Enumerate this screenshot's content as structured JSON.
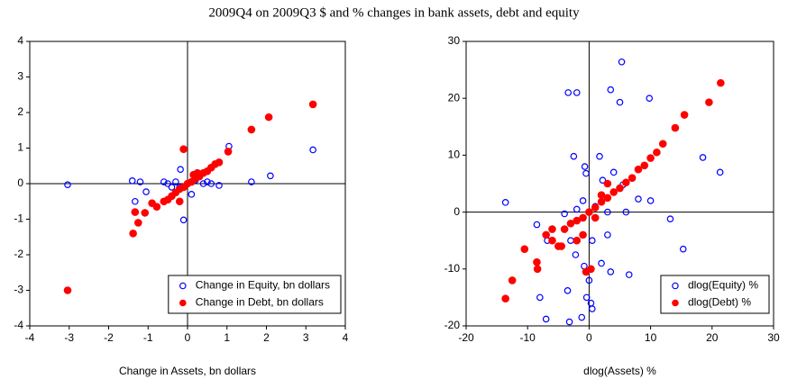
{
  "title": "2009Q4 on 2009Q3 $ and % changes in bank assets, debt and equity",
  "chart_data": [
    {
      "type": "scatter",
      "x_label": "Change in Assets, bn dollars",
      "xlim": [
        -4,
        4
      ],
      "ylim": [
        -4,
        4
      ],
      "xticks": [
        -4,
        -3,
        -2,
        -1,
        0,
        1,
        2,
        3,
        4
      ],
      "yticks": [
        -4,
        -3,
        -2,
        -1,
        0,
        1,
        2,
        3,
        4
      ],
      "zero_lines": true,
      "legend": "lower right",
      "series": [
        {
          "name": "Change in Equity, bn dollars",
          "color": "#0000ff",
          "marker": "open",
          "x": [
            -3.04,
            -1.4,
            -1.2,
            -1.05,
            -1.33,
            -0.1,
            1.05,
            2.1,
            3.18,
            1.62,
            -0.18,
            -0.5,
            -0.3,
            -0.2,
            0.2,
            0.4,
            0.6,
            0.8,
            0.5,
            -0.4,
            0.1,
            0.3,
            -0.6
          ],
          "values": [
            -0.03,
            0.08,
            0.05,
            -0.23,
            -0.5,
            -1.02,
            1.05,
            0.22,
            0.95,
            0.05,
            0.4,
            0,
            0.05,
            -0.1,
            0.1,
            0,
            0,
            -0.05,
            0.05,
            -0.1,
            -0.3,
            0.2,
            0.05
          ]
        },
        {
          "name": "Change in Debt, bn dollars",
          "color": "#ff0000",
          "marker": "filled",
          "x": [
            -3.04,
            -1.38,
            -1.25,
            -1.33,
            -1.08,
            -0.78,
            -0.1,
            3.18,
            2.06,
            1.62,
            1.03,
            0.8,
            0.6,
            0.5,
            0.4,
            0.3,
            0.2,
            0.1,
            0,
            -0.1,
            -0.2,
            -0.3,
            -0.4,
            -0.5,
            -0.6,
            -0.9,
            0.15,
            0.25,
            0.7,
            -0.2
          ],
          "values": [
            -3.0,
            -1.4,
            -1.1,
            -0.8,
            -0.82,
            -0.65,
            0.97,
            2.23,
            1.87,
            1.52,
            0.9,
            0.6,
            0.45,
            0.35,
            0.3,
            0.2,
            0.15,
            0.05,
            0,
            -0.1,
            -0.15,
            -0.25,
            -0.35,
            -0.45,
            -0.5,
            -0.55,
            0.25,
            0.3,
            0.55,
            -0.5
          ]
        }
      ]
    },
    {
      "type": "scatter",
      "x_label": "dlog(Assets) %",
      "xlim": [
        -20,
        30
      ],
      "ylim": [
        -20,
        30
      ],
      "xticks": [
        -20,
        -10,
        0,
        10,
        20,
        30
      ],
      "yticks": [
        -20,
        -10,
        0,
        10,
        20,
        30
      ],
      "zero_lines": true,
      "legend": "lower right",
      "series": [
        {
          "name": "dlog(Equity) %",
          "color": "#0000ff",
          "marker": "open",
          "x": [
            -3.4,
            -2,
            5.3,
            3.5,
            5,
            9.8,
            18.5,
            21.3,
            -2.5,
            -0.7,
            -0.5,
            1.7,
            2.2,
            4,
            5.5,
            8,
            10,
            13.2,
            15.3,
            -13.6,
            -8.5,
            -6.8,
            -8,
            -7,
            -3.2,
            -1.2,
            -0.4,
            0.3,
            0.5,
            -3.5,
            -2.2,
            -0.8,
            2,
            3.5,
            6.5,
            3,
            -3,
            0,
            -4,
            0.5,
            1,
            2,
            -1,
            3,
            6,
            -2
          ],
          "values": [
            21,
            21,
            26.4,
            21.5,
            19.3,
            20,
            9.6,
            7,
            9.8,
            8,
            6.8,
            9.8,
            5.6,
            7,
            4.8,
            2.3,
            2,
            -1.2,
            -6.5,
            1.7,
            -2.2,
            -5,
            -15,
            -18.8,
            -19.3,
            -18.5,
            -15,
            -16,
            -17,
            -13.8,
            -7.5,
            -9.5,
            -9,
            -10.5,
            -11,
            -4,
            -5,
            -12,
            -0.3,
            -5,
            1,
            3,
            2,
            0,
            0,
            0.5
          ]
        },
        {
          "name": "dlog(Debt) %",
          "color": "#ff0000",
          "marker": "filled",
          "x": [
            -13.6,
            -12.5,
            -10.5,
            -8.5,
            -8.4,
            -7,
            -6,
            -5,
            -4,
            -3,
            -2,
            -1,
            0,
            1,
            2,
            3,
            4,
            5,
            6,
            7,
            8,
            9,
            10,
            11,
            12,
            14,
            15.5,
            19.5,
            21.4,
            -1,
            -2,
            1,
            2,
            3,
            -0.5,
            0.3,
            -6,
            -4.5
          ],
          "values": [
            -15.2,
            -12,
            -6.5,
            -8.8,
            -10,
            -4,
            -5,
            -6,
            -3,
            -2,
            -1.5,
            -1,
            0,
            0.8,
            1.8,
            2.5,
            3.5,
            4.2,
            5.2,
            6,
            7.5,
            8.2,
            9.5,
            10.5,
            12,
            14.8,
            17.1,
            19.3,
            22.7,
            -4,
            -5,
            -1,
            3,
            5,
            -10.5,
            -10,
            -3,
            -6
          ]
        }
      ]
    }
  ]
}
